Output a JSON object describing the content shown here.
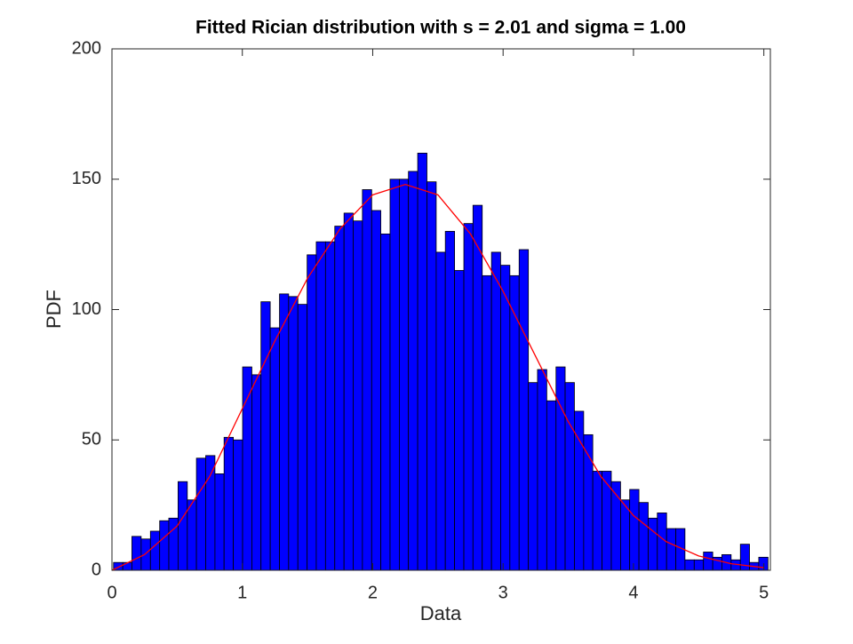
{
  "chart_data": {
    "type": "histogram",
    "title": "Fitted Rician distribution with s = 2.01 and sigma = 1.00",
    "xlabel": "Data",
    "ylabel": "PDF",
    "bins": [
      0.012,
      0.083,
      0.153,
      0.224,
      0.295,
      0.366,
      0.436,
      0.507,
      0.578,
      0.648,
      0.719,
      0.79,
      0.86,
      0.931,
      1.002,
      1.073,
      1.143,
      1.214,
      1.285,
      1.355,
      1.426,
      1.497,
      1.567,
      1.638,
      1.709,
      1.78,
      1.85,
      1.921,
      1.992,
      2.062,
      2.133,
      2.204,
      2.274,
      2.345,
      2.416,
      2.487,
      2.557,
      2.628,
      2.699,
      2.769,
      2.84,
      2.911,
      2.981,
      3.052,
      3.123,
      3.194,
      3.264,
      3.335,
      3.406,
      3.476,
      3.547,
      3.618,
      3.688,
      3.759,
      3.83,
      3.901,
      3.971,
      4.042,
      4.113,
      4.183,
      4.254,
      4.325,
      4.395,
      4.466,
      4.537,
      4.608,
      4.678,
      4.749,
      4.82,
      4.89,
      4.961,
      5.032
    ],
    "values": [
      3,
      3,
      13,
      12,
      15,
      19,
      20,
      34,
      27,
      43,
      44,
      37,
      51,
      50,
      78,
      75,
      103,
      93,
      106,
      105,
      102,
      121,
      126,
      126,
      132,
      137,
      134,
      146,
      138,
      129,
      150,
      150,
      153,
      160,
      149,
      122,
      130,
      115,
      133,
      140,
      113,
      122,
      117,
      113,
      123,
      72,
      77,
      65,
      78,
      72,
      61,
      52,
      38,
      38,
      34,
      27,
      31,
      26,
      20,
      22,
      16,
      16,
      4,
      4,
      7,
      5,
      6,
      4,
      10,
      3,
      5
    ],
    "color": "#0000ff",
    "curve_x": [
      0,
      0.25,
      0.5,
      0.75,
      1,
      1.25,
      1.5,
      1.75,
      2,
      2.25,
      2.5,
      2.75,
      3,
      3.25,
      3.5,
      3.75,
      4,
      4.25,
      4.5,
      4.75,
      5
    ],
    "curve_values": [
      0,
      6,
      17,
      36,
      62,
      88,
      112,
      131,
      144,
      148,
      144,
      129,
      107,
      82,
      57,
      36,
      21,
      11,
      5.5,
      2.5,
      1
    ],
    "curve_color": "#ff0000",
    "xlim": [
      0,
      5.05
    ],
    "xticks": [
      0,
      1,
      2,
      3,
      4,
      5
    ],
    "ylim": [
      0,
      200
    ],
    "yticks": [
      0,
      50,
      100,
      150,
      200
    ],
    "grid": false
  }
}
